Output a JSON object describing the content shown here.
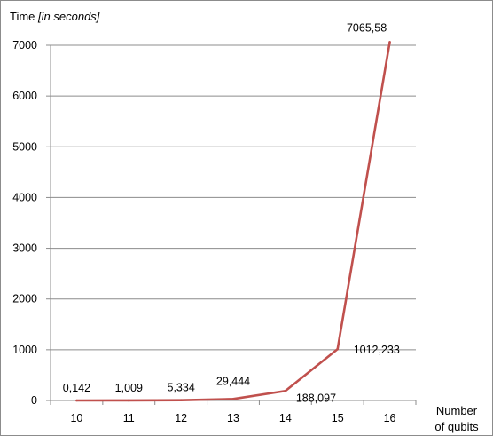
{
  "chart_data": {
    "type": "line",
    "ylabel": "Time",
    "ylabel_unit": "[in seconds]",
    "xlabel_lines": [
      "Number",
      "of qubits"
    ],
    "categories": [
      "10",
      "11",
      "12",
      "13",
      "14",
      "15",
      "16"
    ],
    "x": [
      10,
      11,
      12,
      13,
      14,
      15,
      16
    ],
    "series": [
      {
        "values": [
          0.142,
          1.009,
          5.334,
          29.444,
          188.097,
          1012.233,
          7065.58
        ],
        "labels": [
          "0,142",
          "1,009",
          "5,334",
          "29,444",
          "188,097",
          "1012,233",
          "7065,58"
        ],
        "color": "#c0504d"
      }
    ],
    "ylim": [
      0,
      7000
    ],
    "yticks": [
      0,
      1000,
      2000,
      3000,
      4000,
      5000,
      6000,
      7000
    ],
    "grid": true,
    "legend": "none"
  }
}
